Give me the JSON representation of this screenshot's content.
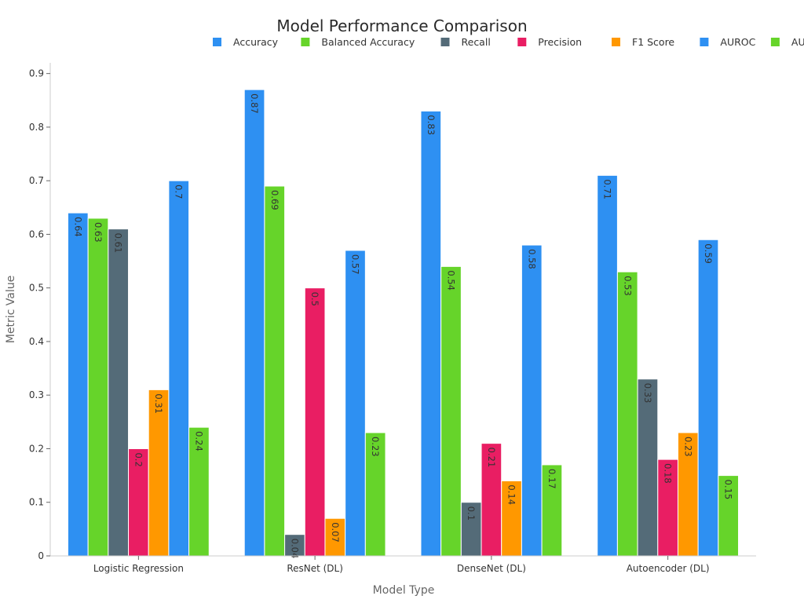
{
  "chart_data": {
    "type": "bar",
    "title": "Model Performance Comparison",
    "xlabel": "Model Type",
    "ylabel": "Metric Value",
    "categories": [
      "Logistic Regression",
      "ResNet (DL)",
      "DenseNet (DL)",
      "Autoencoder (DL)"
    ],
    "ylim": [
      0,
      0.92
    ],
    "yticks": [
      0,
      0.1,
      0.2,
      0.3,
      0.4,
      0.5,
      0.6,
      0.7,
      0.8,
      0.9
    ],
    "ytick_labels": [
      "0",
      "0.1",
      "0.2",
      "0.3",
      "0.4",
      "0.5",
      "0.6",
      "0.7",
      "0.8",
      "0.9"
    ],
    "grid": false,
    "legend_position": "top-right",
    "series": [
      {
        "name": "Accuracy",
        "color": "#2e90f2",
        "values": [
          0.64,
          0.87,
          0.83,
          0.71
        ],
        "labels": [
          "0.64",
          "0.87",
          "0.83",
          "0.71"
        ]
      },
      {
        "name": "Balanced Accuracy",
        "color": "#66d42a",
        "values": [
          0.63,
          0.69,
          0.54,
          0.53
        ],
        "labels": [
          "0.63",
          "0.69",
          "0.54",
          "0.53"
        ]
      },
      {
        "name": "Recall",
        "color": "#546b78",
        "values": [
          0.61,
          0.04,
          0.1,
          0.33
        ],
        "labels": [
          "0.61",
          "0.04",
          "0.1",
          "0.33"
        ]
      },
      {
        "name": "Precision",
        "color": "#e91e63",
        "values": [
          0.2,
          0.5,
          0.21,
          0.18
        ],
        "labels": [
          "0.2",
          "0.5",
          "0.21",
          "0.18"
        ]
      },
      {
        "name": "F1 Score",
        "color": "#ff9800",
        "values": [
          0.31,
          0.07,
          0.14,
          0.23
        ],
        "labels": [
          "0.31",
          "0.07",
          "0.14",
          "0.23"
        ]
      },
      {
        "name": "AUROC",
        "color": "#2e90f2",
        "values": [
          0.7,
          0.57,
          0.58,
          0.59
        ],
        "labels": [
          "0.7",
          "0.57",
          "0.58",
          "0.59"
        ]
      },
      {
        "name": "AUPRC",
        "color": "#66d42a",
        "values": [
          0.24,
          0.23,
          0.17,
          0.15
        ],
        "labels": [
          "0.24",
          "0.23",
          "0.17",
          "0.15"
        ]
      }
    ]
  }
}
